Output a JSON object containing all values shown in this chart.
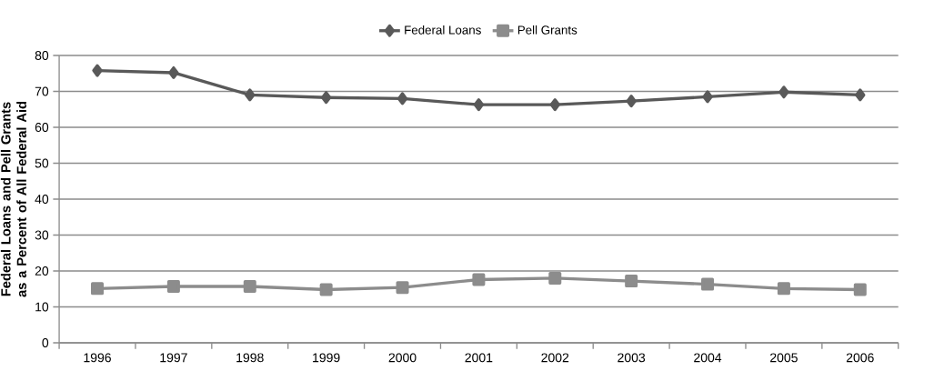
{
  "chart_data": {
    "type": "line",
    "ylabel": "Federal Loans and Pell Grants as a Percent of All Federal Aid",
    "categories": [
      "1996",
      "1997",
      "1998",
      "1999",
      "2000",
      "2001",
      "2002",
      "2003",
      "2004",
      "2005",
      "2006"
    ],
    "series": [
      {
        "name": "Federal Loans",
        "color": "#595959",
        "marker": "diamond",
        "values": [
          75.8,
          75.2,
          69.0,
          68.3,
          68.0,
          66.3,
          66.3,
          67.3,
          68.5,
          69.8,
          69.0
        ]
      },
      {
        "name": "Pell Grants",
        "color": "#8c8c8c",
        "marker": "square",
        "values": [
          15.1,
          15.7,
          15.7,
          14.8,
          15.4,
          17.6,
          18.0,
          17.2,
          16.3,
          15.1,
          14.8
        ]
      }
    ],
    "ylim": [
      0,
      80
    ],
    "yticks": [
      0,
      10,
      20,
      30,
      40,
      50,
      60,
      70,
      80
    ],
    "grid": "y",
    "legend": "top",
    "line_style": "solid"
  }
}
